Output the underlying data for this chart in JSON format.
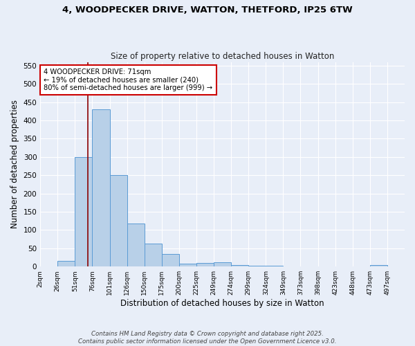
{
  "title_line1": "4, WOODPECKER DRIVE, WATTON, THETFORD, IP25 6TW",
  "title_line2": "Size of property relative to detached houses in Watton",
  "xlabel": "Distribution of detached houses by size in Watton",
  "ylabel": "Number of detached properties",
  "bar_labels": [
    "2sqm",
    "26sqm",
    "51sqm",
    "76sqm",
    "101sqm",
    "126sqm",
    "150sqm",
    "175sqm",
    "200sqm",
    "225sqm",
    "249sqm",
    "274sqm",
    "299sqm",
    "324sqm",
    "349sqm",
    "373sqm",
    "398sqm",
    "423sqm",
    "448sqm",
    "473sqm",
    "497sqm"
  ],
  "bar_values": [
    0,
    15,
    300,
    430,
    250,
    118,
    63,
    35,
    8,
    10,
    12,
    5,
    3,
    2,
    0,
    1,
    0,
    0,
    0,
    4,
    0
  ],
  "bar_color": "#b8d0e8",
  "bar_edge_color": "#5b9bd5",
  "bg_color": "#e8eef8",
  "grid_color": "#ffffff",
  "annotation_text": "4 WOODPECKER DRIVE: 71sqm\n← 19% of detached houses are smaller (240)\n80% of semi-detached houses are larger (999) →",
  "annotation_box_color": "#ffffff",
  "annotation_box_edge": "#cc0000",
  "red_line_x": 2.75,
  "ylim": [
    0,
    560
  ],
  "yticks": [
    0,
    50,
    100,
    150,
    200,
    250,
    300,
    350,
    400,
    450,
    500,
    550
  ],
  "footer_line1": "Contains HM Land Registry data © Crown copyright and database right 2025.",
  "footer_line2": "Contains public sector information licensed under the Open Government Licence v3.0."
}
